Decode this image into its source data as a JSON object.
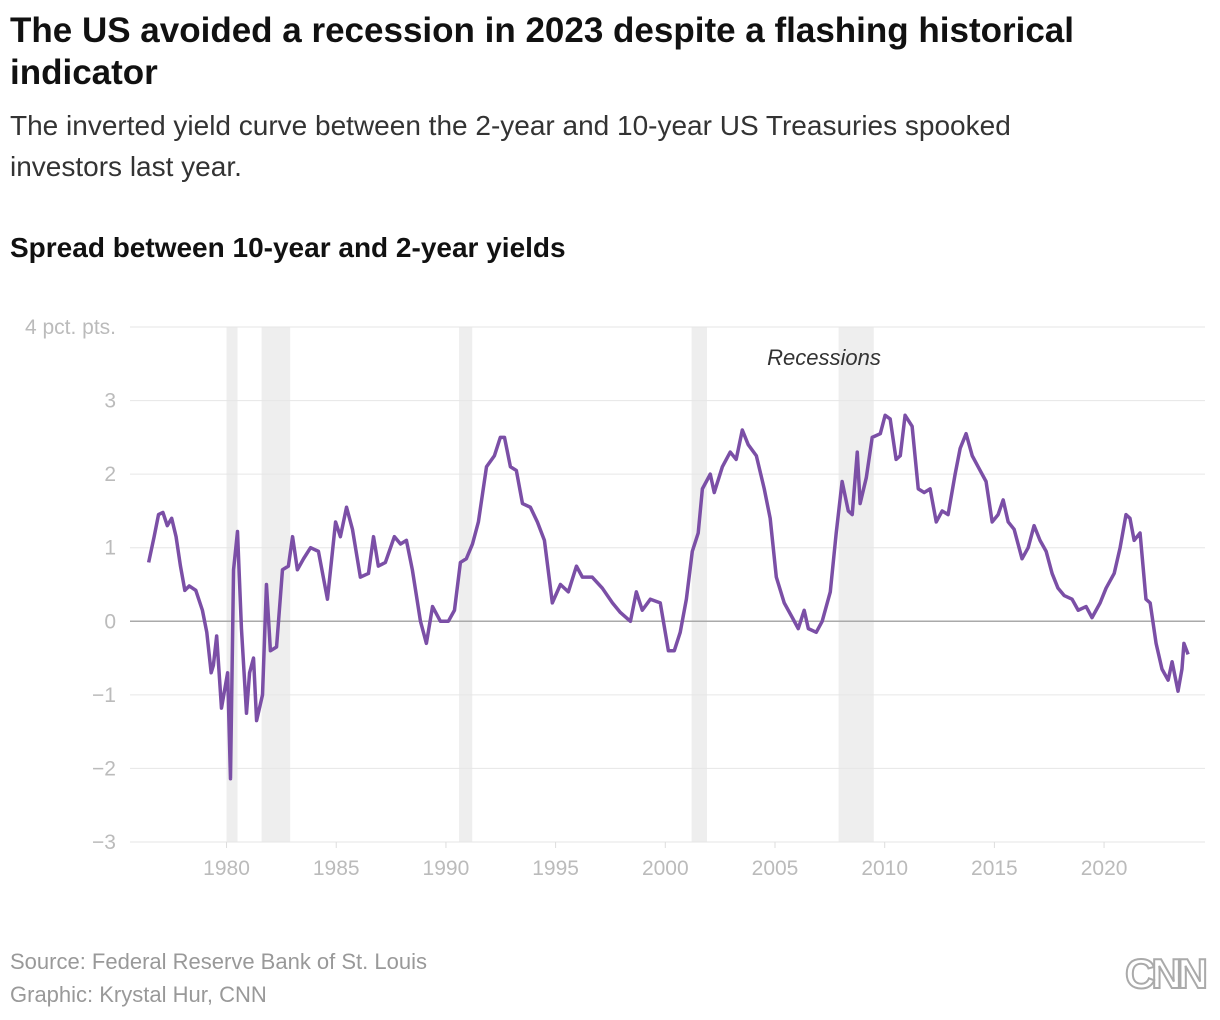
{
  "chart_data": {
    "type": "line",
    "title": "The US avoided a recession in 2023 despite a flashing historical indicator",
    "subtitle": "The inverted yield curve between the 2-year and 10-year US Treasuries spooked investors last year.",
    "heading": "Spread between 10-year and 2-year yields",
    "annotation": "Recessions",
    "source": "Source: Federal Reserve Bank of St. Louis",
    "credit": "Graphic: Krystal Hur, CNN",
    "logo": "CNN",
    "color": "#7b4fa6",
    "recession_color": "#eeeeee",
    "grid": true,
    "xlim": [
      1975.6,
      2024.6
    ],
    "ylim": [
      -3,
      4
    ],
    "xticks": [
      1980,
      1985,
      1990,
      1995,
      2000,
      2005,
      2010,
      2015,
      2020
    ],
    "yticks": [
      {
        "value": -3,
        "label": "−3"
      },
      {
        "value": -2,
        "label": "−2"
      },
      {
        "value": -1,
        "label": "−1"
      },
      0,
      1,
      2,
      3,
      {
        "value": 4,
        "label": "4 pct. pts."
      }
    ],
    "recessions": [
      {
        "start": 1980.0,
        "end": 1980.5
      },
      {
        "start": 1981.6,
        "end": 1982.9
      },
      {
        "start": 1990.6,
        "end": 1991.2
      },
      {
        "start": 2001.2,
        "end": 2001.9
      },
      {
        "start": 2007.9,
        "end": 2009.5
      }
    ],
    "x": [
      1976.45,
      1976.7,
      1976.9,
      1977.1,
      1977.3,
      1977.5,
      1977.7,
      1977.9,
      1978.1,
      1978.3,
      1978.6,
      1978.9,
      1979.1,
      1979.3,
      1979.4,
      1979.55,
      1979.77,
      1980.05,
      1980.18,
      1980.32,
      1980.5,
      1980.68,
      1980.91,
      1981.05,
      1981.23,
      1981.37,
      1981.64,
      1981.82,
      1982.0,
      1982.28,
      1982.55,
      1982.82,
      1983.01,
      1983.23,
      1983.51,
      1983.83,
      1984.19,
      1984.6,
      1984.97,
      1985.19,
      1985.47,
      1985.74,
      1986.1,
      1986.47,
      1986.7,
      1986.92,
      1987.24,
      1987.65,
      1987.93,
      1988.2,
      1988.47,
      1988.84,
      1989.11,
      1989.39,
      1989.75,
      1990.11,
      1990.39,
      1990.66,
      1990.93,
      1991.21,
      1991.48,
      1991.85,
      1992.21,
      1992.48,
      1992.67,
      1992.94,
      1993.21,
      1993.49,
      1993.85,
      1994.17,
      1994.49,
      1994.85,
      1995.22,
      1995.58,
      1995.95,
      1996.22,
      1996.67,
      1997.13,
      1997.59,
      1997.95,
      1998.41,
      1998.68,
      1998.95,
      1999.32,
      1999.77,
      2000.14,
      2000.41,
      2000.68,
      2000.96,
      2001.23,
      2001.5,
      2001.69,
      2002.05,
      2002.23,
      2002.6,
      2002.96,
      2003.23,
      2003.51,
      2003.78,
      2004.15,
      2004.51,
      2004.78,
      2005.06,
      2005.42,
      2005.79,
      2006.06,
      2006.33,
      2006.52,
      2006.88,
      2007.15,
      2007.52,
      2007.79,
      2008.06,
      2008.34,
      2008.52,
      2008.75,
      2008.88,
      2009.16,
      2009.43,
      2009.8,
      2010.02,
      2010.25,
      2010.52,
      2010.71,
      2010.93,
      2011.25,
      2011.53,
      2011.8,
      2012.07,
      2012.35,
      2012.62,
      2012.89,
      2013.21,
      2013.44,
      2013.71,
      2013.99,
      2014.26,
      2014.62,
      2014.9,
      2015.17,
      2015.4,
      2015.63,
      2015.9,
      2016.26,
      2016.54,
      2016.81,
      2017.08,
      2017.36,
      2017.63,
      2017.9,
      2018.18,
      2018.54,
      2018.82,
      2019.18,
      2019.45,
      2019.82,
      2020.09,
      2020.46,
      2020.73,
      2021.0,
      2021.18,
      2021.37,
      2021.64,
      2021.91,
      2022.1,
      2022.37,
      2022.64,
      2022.92,
      2023.1,
      2023.37,
      2023.55,
      2023.64,
      2023.83
    ],
    "values": [
      0.8,
      1.15,
      1.45,
      1.48,
      1.3,
      1.4,
      1.15,
      0.75,
      0.42,
      0.48,
      0.42,
      0.15,
      -0.15,
      -0.7,
      -0.6,
      -0.2,
      -1.18,
      -0.7,
      -2.14,
      0.7,
      1.22,
      -0.1,
      -1.25,
      -0.7,
      -0.5,
      -1.35,
      -1.0,
      0.5,
      -0.4,
      -0.35,
      0.7,
      0.75,
      1.15,
      0.7,
      0.85,
      1.0,
      0.95,
      0.3,
      1.35,
      1.15,
      1.55,
      1.25,
      0.6,
      0.65,
      1.15,
      0.75,
      0.8,
      1.15,
      1.05,
      1.1,
      0.7,
      0.0,
      -0.3,
      0.2,
      0.0,
      0.0,
      0.15,
      0.8,
      0.85,
      1.05,
      1.35,
      2.1,
      2.25,
      2.5,
      2.5,
      2.1,
      2.05,
      1.6,
      1.55,
      1.35,
      1.1,
      0.25,
      0.5,
      0.4,
      0.75,
      0.6,
      0.6,
      0.45,
      0.25,
      0.12,
      0.0,
      0.4,
      0.15,
      0.3,
      0.25,
      -0.4,
      -0.4,
      -0.15,
      0.3,
      0.95,
      1.2,
      1.8,
      2.0,
      1.75,
      2.1,
      2.3,
      2.2,
      2.6,
      2.4,
      2.25,
      1.8,
      1.4,
      0.6,
      0.25,
      0.05,
      -0.1,
      0.15,
      -0.1,
      -0.15,
      0.0,
      0.4,
      1.2,
      1.9,
      1.5,
      1.45,
      2.3,
      1.6,
      1.95,
      2.5,
      2.55,
      2.8,
      2.75,
      2.2,
      2.25,
      2.8,
      2.65,
      1.8,
      1.75,
      1.8,
      1.35,
      1.5,
      1.45,
      2.0,
      2.35,
      2.55,
      2.25,
      2.1,
      1.9,
      1.35,
      1.45,
      1.65,
      1.35,
      1.25,
      0.85,
      1.0,
      1.3,
      1.1,
      0.95,
      0.65,
      0.45,
      0.35,
      0.3,
      0.15,
      0.2,
      0.05,
      0.25,
      0.45,
      0.65,
      1.0,
      1.45,
      1.4,
      1.1,
      1.2,
      0.3,
      0.25,
      -0.3,
      -0.65,
      -0.8,
      -0.55,
      -0.95,
      -0.65,
      -0.3,
      -0.45
    ]
  }
}
